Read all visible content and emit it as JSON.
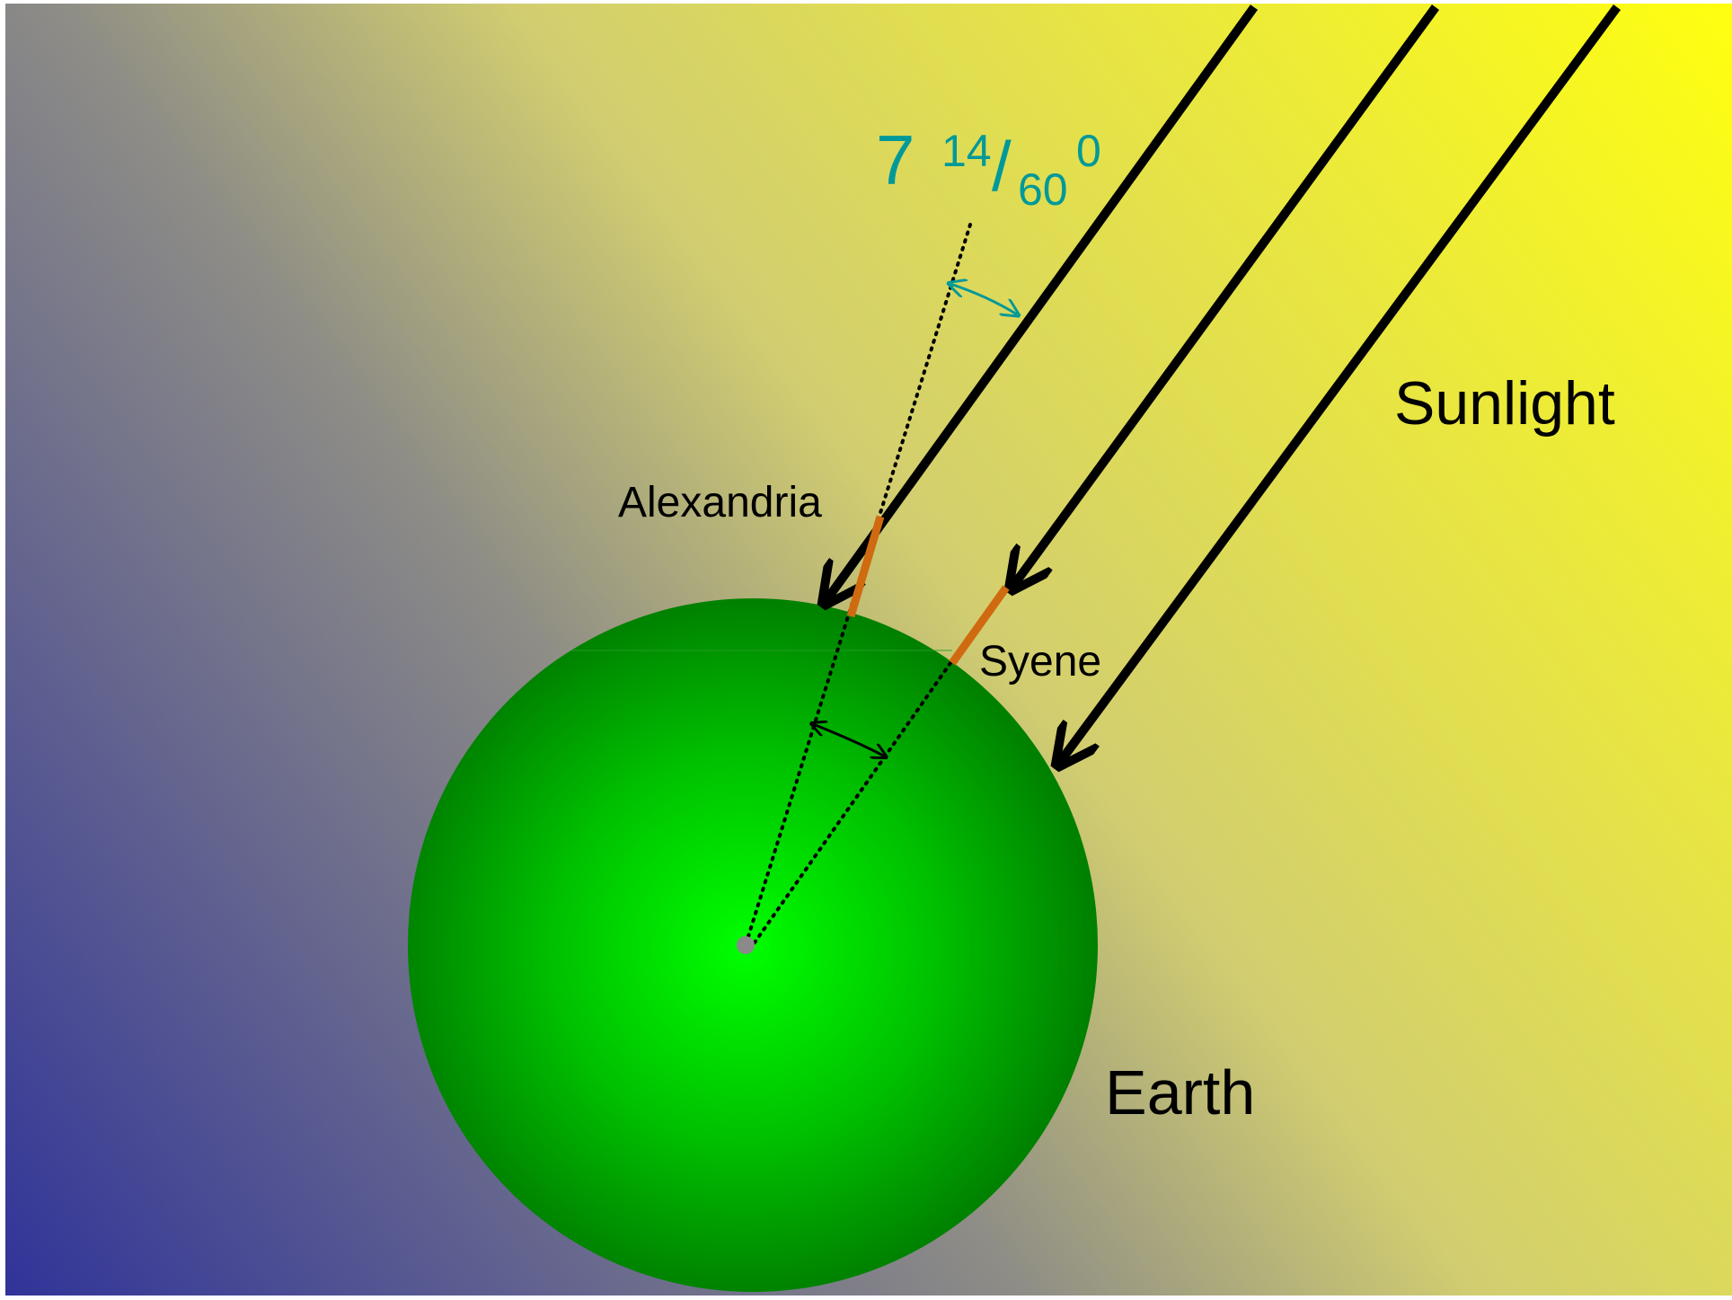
{
  "angle": {
    "whole": "7",
    "numerator": "14",
    "slash": "/",
    "denominator": "60",
    "degree": "0"
  },
  "labels": {
    "alexandria": "Alexandria",
    "syene": "Syene",
    "sunlight": "Sunlight",
    "earth": "Earth"
  },
  "colors": {
    "background_top_right": "#FFFF10",
    "background_bottom_left": "#303399",
    "earth_center": "#00FF00",
    "earth_edge": "#008000",
    "gnomon": "#D06A10",
    "angle_annotation": "#009999",
    "rays": "#000000"
  }
}
